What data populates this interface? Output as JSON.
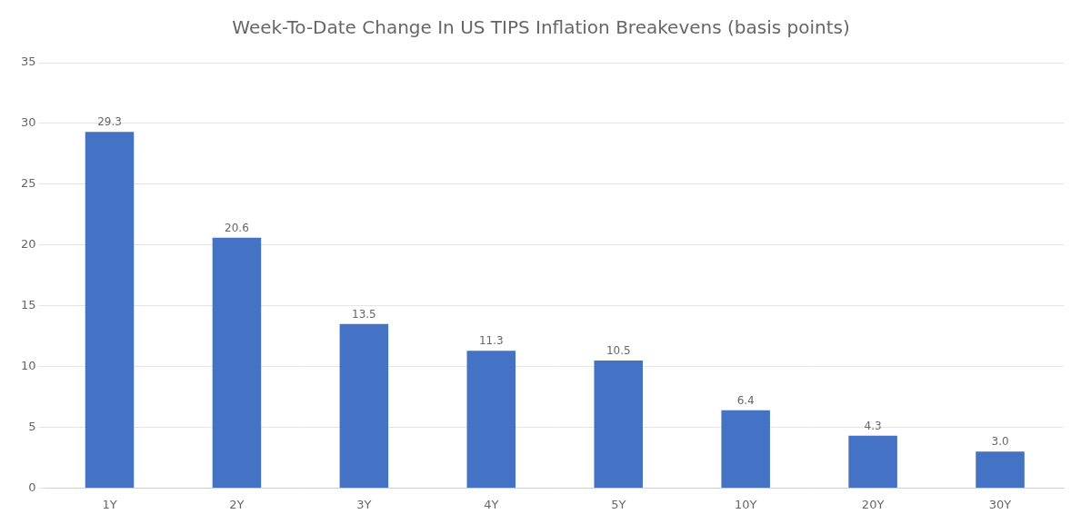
{
  "chart_data": {
    "type": "bar",
    "title": "Week-To-Date Change In US TIPS Inflation Breakevens (basis points)",
    "categories": [
      "1Y",
      "2Y",
      "3Y",
      "4Y",
      "5Y",
      "10Y",
      "20Y",
      "30Y"
    ],
    "values": [
      29.3,
      20.6,
      13.5,
      11.3,
      10.5,
      6.4,
      4.3,
      3.0
    ],
    "value_labels": [
      "29.3",
      "20.6",
      "13.5",
      "11.3",
      "10.5",
      "6.4",
      "4.3",
      "3.0"
    ],
    "color": "#4472c4",
    "ylim": [
      0,
      35
    ],
    "yticks": [
      0,
      5,
      10,
      15,
      20,
      25,
      30,
      35
    ],
    "grid": true,
    "data_labels": true
  }
}
